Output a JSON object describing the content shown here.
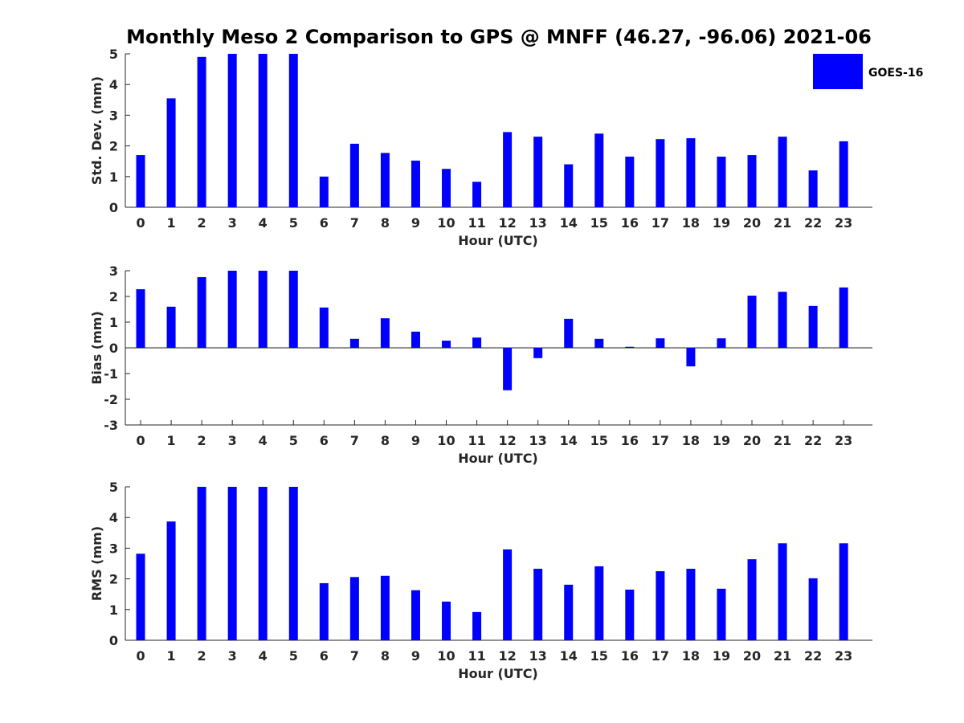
{
  "title": "Monthly Meso 2 Comparison to GPS @ MNFF (46.27, -96.06) 2021-06",
  "legend": {
    "label": "GOES-16",
    "color": "#0000ff"
  },
  "chart_data": [
    {
      "type": "bar",
      "xlabel": "Hour (UTC)",
      "ylabel": "Std. Dev. (mm)",
      "ylim": [
        0,
        5
      ],
      "yticks": [
        0,
        1,
        2,
        3,
        4,
        5
      ],
      "categories": [
        "0",
        "1",
        "2",
        "3",
        "4",
        "5",
        "6",
        "7",
        "8",
        "9",
        "10",
        "11",
        "12",
        "13",
        "14",
        "15",
        "16",
        "17",
        "18",
        "19",
        "20",
        "21",
        "22",
        "23"
      ],
      "series": [
        {
          "name": "GOES-16",
          "color": "#0000ff",
          "values": [
            1.7,
            3.55,
            4.9,
            5.0,
            5.0,
            5.0,
            1.0,
            2.07,
            1.77,
            1.52,
            1.25,
            0.83,
            2.45,
            2.3,
            1.4,
            2.4,
            1.65,
            2.22,
            2.25,
            1.65,
            1.7,
            2.3,
            1.2,
            2.15
          ]
        }
      ]
    },
    {
      "type": "bar",
      "xlabel": "Hour (UTC)",
      "ylabel": "Bias (mm)",
      "ylim": [
        -3,
        3
      ],
      "yticks": [
        -3,
        -2,
        -1,
        0,
        1,
        2,
        3
      ],
      "categories": [
        "0",
        "1",
        "2",
        "3",
        "4",
        "5",
        "6",
        "7",
        "8",
        "9",
        "10",
        "11",
        "12",
        "13",
        "14",
        "15",
        "16",
        "17",
        "18",
        "19",
        "20",
        "21",
        "22",
        "23"
      ],
      "series": [
        {
          "name": "GOES-16",
          "color": "#0000ff",
          "values": [
            2.28,
            1.6,
            2.75,
            3.0,
            3.0,
            3.0,
            1.57,
            0.35,
            1.15,
            0.63,
            0.28,
            0.4,
            -1.65,
            -0.4,
            1.13,
            0.35,
            0.04,
            0.37,
            -0.72,
            0.37,
            2.03,
            2.18,
            1.63,
            2.35
          ]
        }
      ]
    },
    {
      "type": "bar",
      "xlabel": "Hour (UTC)",
      "ylabel": "RMS (mm)",
      "ylim": [
        0,
        5
      ],
      "yticks": [
        0,
        1,
        2,
        3,
        4,
        5
      ],
      "categories": [
        "0",
        "1",
        "2",
        "3",
        "4",
        "5",
        "6",
        "7",
        "8",
        "9",
        "10",
        "11",
        "12",
        "13",
        "14",
        "15",
        "16",
        "17",
        "18",
        "19",
        "20",
        "21",
        "22",
        "23"
      ],
      "series": [
        {
          "name": "GOES-16",
          "color": "#0000ff",
          "values": [
            2.82,
            3.87,
            5.0,
            5.0,
            5.0,
            5.0,
            1.86,
            2.06,
            2.1,
            1.63,
            1.26,
            0.92,
            2.96,
            2.33,
            1.81,
            2.41,
            1.65,
            2.25,
            2.33,
            1.68,
            2.64,
            3.16,
            2.02,
            3.16
          ]
        }
      ]
    }
  ]
}
